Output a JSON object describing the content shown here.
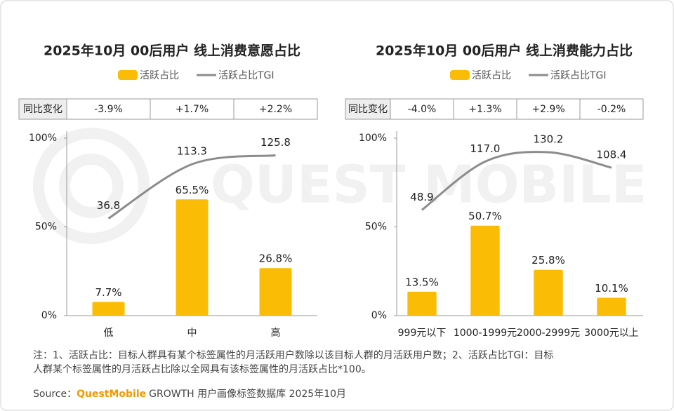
{
  "watermark": "QUEST MOBILE",
  "chart_data": [
    {
      "type": "bar",
      "title": "2025年10月 00后用户 线上消费意愿占比",
      "categories": [
        "低",
        "中",
        "高"
      ],
      "series": [
        {
          "name": "活跃占比",
          "color": "#fbbc05",
          "values": [
            7.7,
            65.5,
            26.8
          ],
          "value_labels": [
            "7.7%",
            "65.5%",
            "26.8%"
          ]
        },
        {
          "name": "活跃占比TGI",
          "type": "line",
          "axis": "y2",
          "color": "#8c8c8c",
          "values": [
            36.8,
            113.3,
            125.8
          ],
          "value_labels": [
            "36.8",
            "113.3",
            "125.8"
          ]
        }
      ],
      "ylim": [
        0,
        100
      ],
      "yticks": [
        {
          "value": 0,
          "label": "0%"
        },
        {
          "value": 50,
          "label": "50%"
        },
        {
          "value": 100,
          "label": "100%"
        }
      ],
      "y2lim": [
        -100,
        150
      ],
      "legend": "top",
      "change_table": {
        "label": "同比变化",
        "values": [
          "-3.9%",
          "+1.7%",
          "+2.2%"
        ]
      }
    },
    {
      "type": "bar",
      "title": "2025年10月 00后用户 线上消费能力占比",
      "categories": [
        "999元以下",
        "1000-1999元",
        "2000-2999元",
        "3000元以上"
      ],
      "series": [
        {
          "name": "活跃占比",
          "color": "#fbbc05",
          "values": [
            13.5,
            50.7,
            25.8,
            10.1
          ],
          "value_labels": [
            "13.5%",
            "50.7%",
            "25.8%",
            "10.1%"
          ]
        },
        {
          "name": "活跃占比TGI",
          "type": "line",
          "axis": "y2",
          "color": "#8c8c8c",
          "values": [
            48.9,
            117.0,
            130.2,
            108.4
          ],
          "value_labels": [
            "48.9",
            "117.0",
            "130.2",
            "108.4"
          ]
        }
      ],
      "ylim": [
        0,
        100
      ],
      "yticks": [
        {
          "value": 0,
          "label": "0%"
        },
        {
          "value": 50,
          "label": "50%"
        },
        {
          "value": 100,
          "label": "100%"
        }
      ],
      "y2lim": [
        -100,
        150
      ],
      "legend": "top",
      "change_table": {
        "label": "同比变化",
        "values": [
          "-4.0%",
          "+1.3%",
          "+2.9%",
          "-0.2%"
        ]
      }
    }
  ],
  "note": [
    "注：1、活跃占比：目标人群具有某个标签属性的月活跃用户数除以该目标人群的月活跃用户数；2、活跃占比TGI：目标",
    "人群某个标签属性的月活跃占比除以全网具有该标签属性的月活跃占比*100。"
  ],
  "source": {
    "label": "Source：",
    "brand": "QuestMobile",
    "text": "GROWTH 用户画像标签数据库 2025年10月"
  }
}
